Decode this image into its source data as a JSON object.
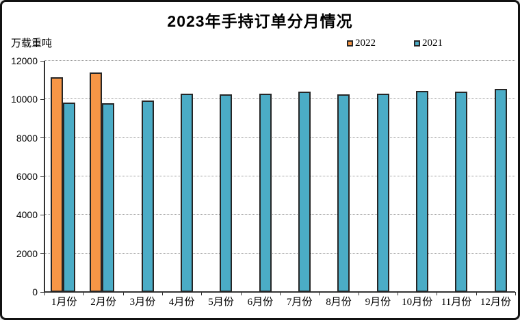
{
  "title": "2023年手持订单分月情况",
  "unit_label": "万载重吨",
  "legend": {
    "items": [
      {
        "label": "2022",
        "color": "#F79646"
      },
      {
        "label": "2021",
        "color": "#4BACC6"
      }
    ]
  },
  "colors": {
    "bar_border": "#262626",
    "gridline": "#999999",
    "axis": "#333333",
    "background": "#ffffff",
    "frame_border": "#111111"
  },
  "chart_data": {
    "type": "bar",
    "title": "2023年手持订单分月情况",
    "ylabel": "万载重吨",
    "xlabel": "",
    "categories": [
      "1月份",
      "2月份",
      "3月份",
      "4月份",
      "5月份",
      "6月份",
      "7月份",
      "8月份",
      "9月份",
      "10月份",
      "11月份",
      "12月份"
    ],
    "series": [
      {
        "name": "2022",
        "color": "#F79646",
        "values": [
          11150,
          11400,
          null,
          null,
          null,
          null,
          null,
          null,
          null,
          null,
          null,
          null
        ]
      },
      {
        "name": "2021",
        "color": "#4BACC6",
        "values": [
          9850,
          9800,
          9950,
          10300,
          10250,
          10300,
          10400,
          10250,
          10300,
          10450,
          10400,
          10550
        ]
      }
    ],
    "ylim": [
      0,
      12000
    ],
    "ytick_step": 2000,
    "grid": "horizontal-dashed",
    "legend_position": "top-right"
  }
}
